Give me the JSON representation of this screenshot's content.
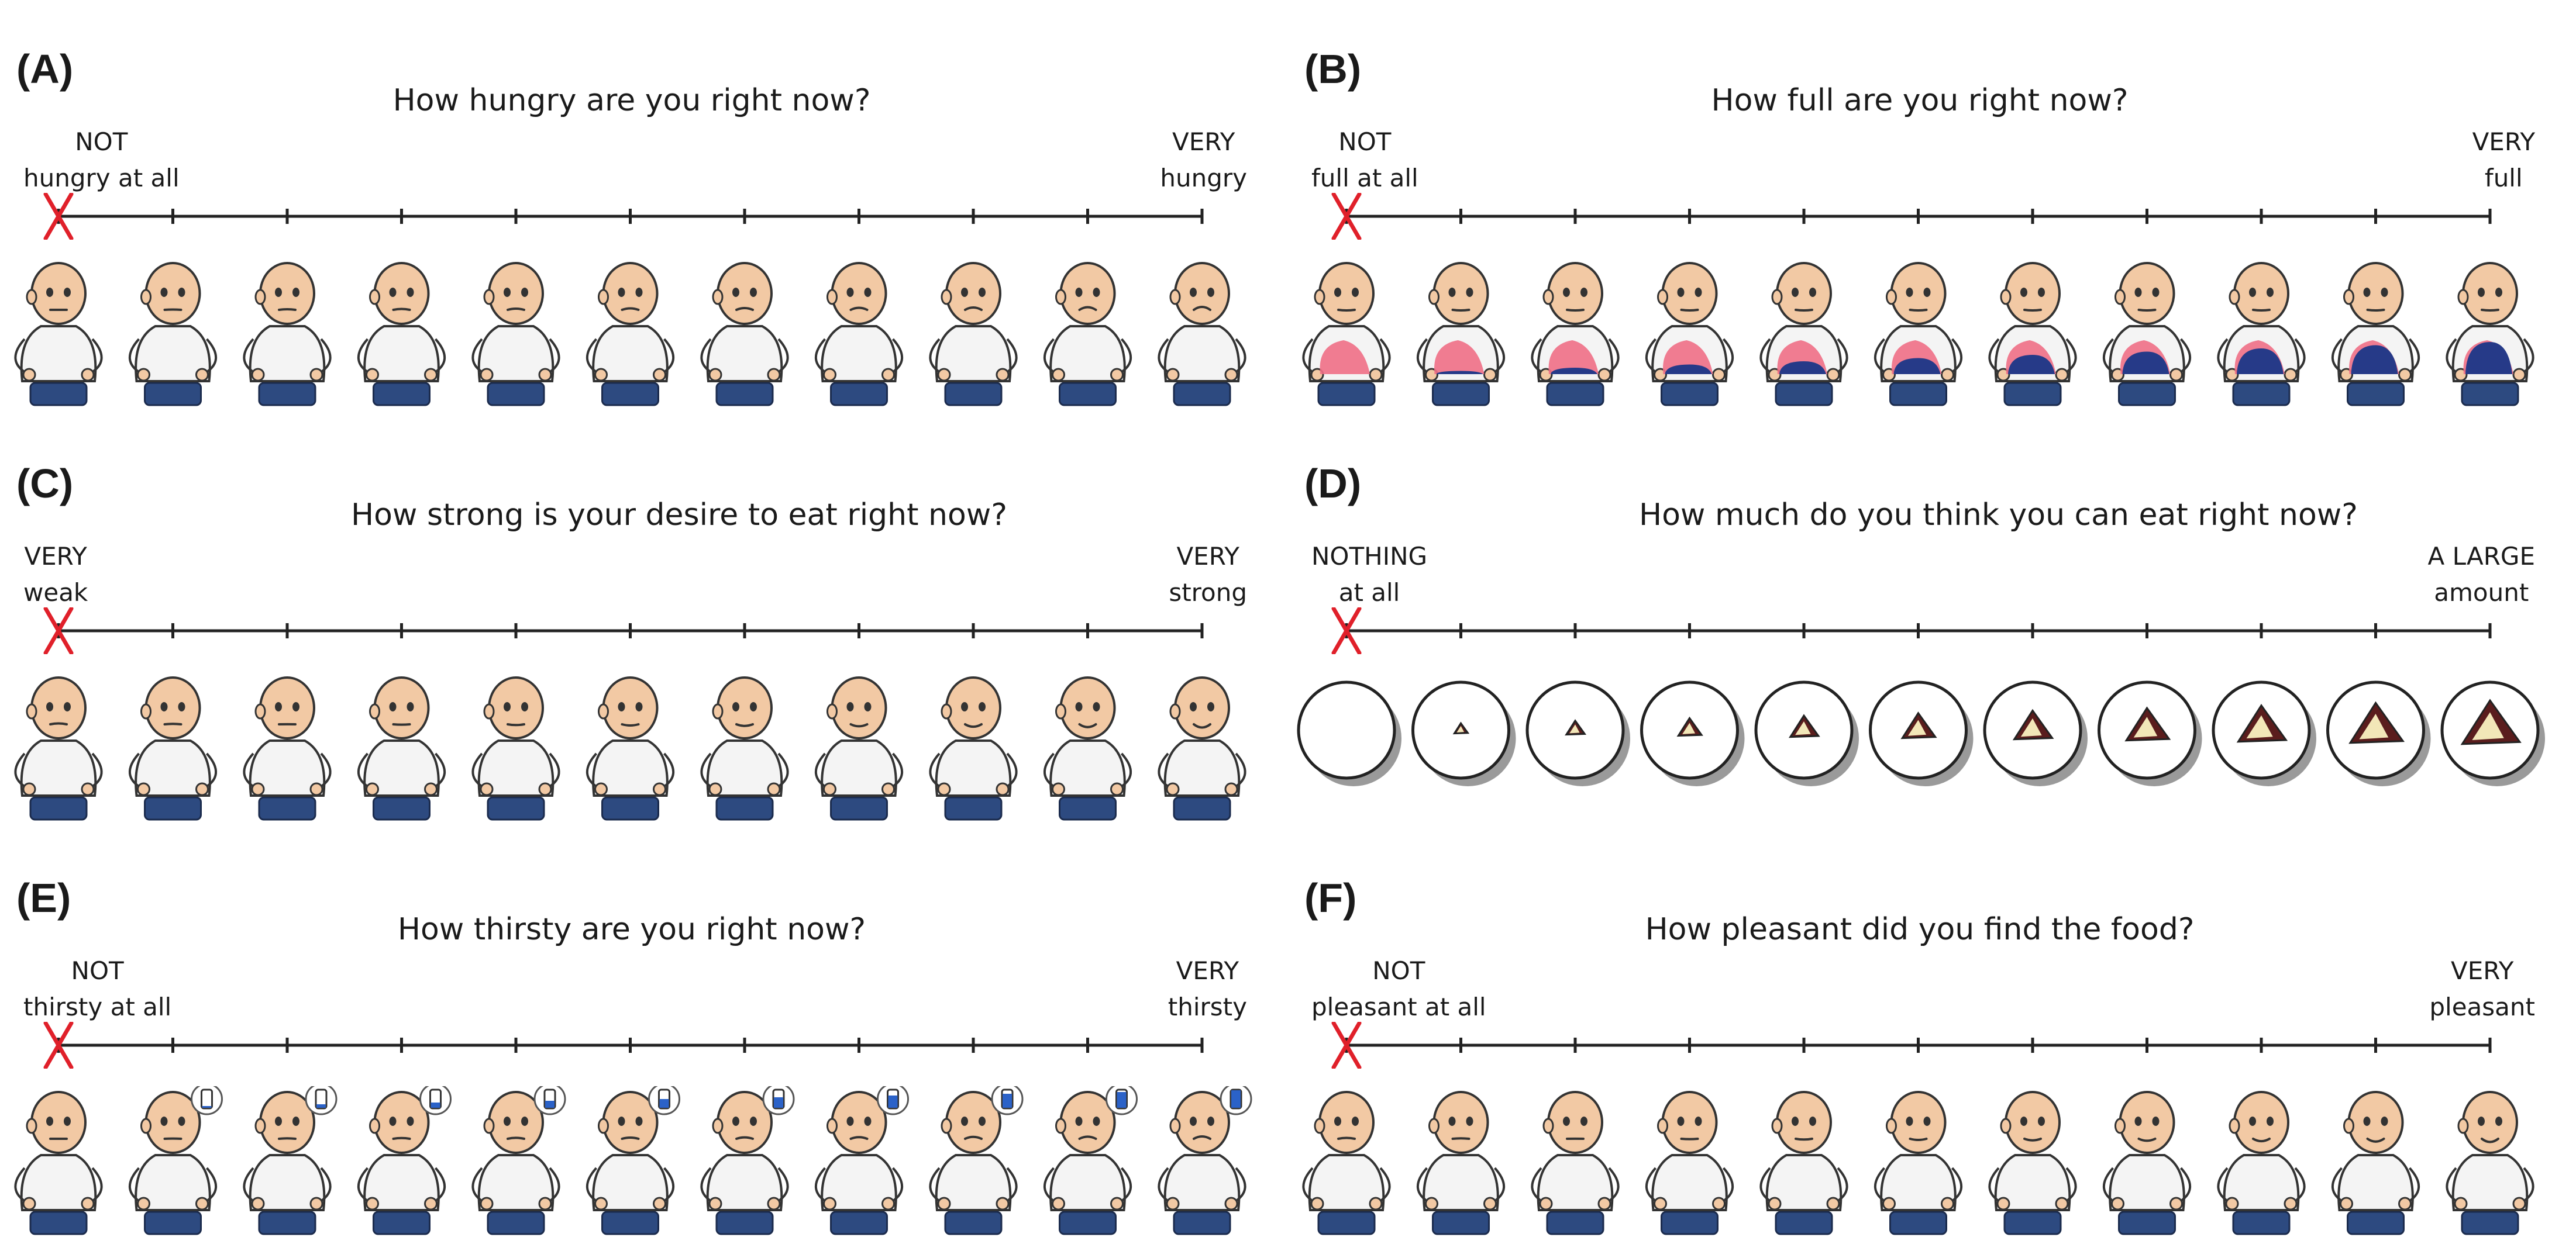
{
  "colors": {
    "line": "#222222",
    "marker": "#e0202a",
    "skin": "#f2c9a4",
    "shirt": "#f4f4f4",
    "jeans": "#2d4a80",
    "stomach_empty": "#ef6f86",
    "stomach_full": "#263a88",
    "water": "#2b62c8",
    "food": "#5a1d1d",
    "plate_shadow": "#9a9a9a"
  },
  "marker_position": 0,
  "scale_points": 11,
  "panels": [
    {
      "id": "A",
      "label": "(A)",
      "question": "How hungry are you right now?",
      "left_anchor": [
        "NOT",
        "hungry at all"
      ],
      "right_anchor": [
        "VERY",
        "hungry"
      ],
      "icon_set": "person-hunger-icon"
    },
    {
      "id": "B",
      "label": "(B)",
      "question": "How full are you right now?",
      "left_anchor": [
        "NOT",
        "full at all"
      ],
      "right_anchor": [
        "VERY",
        "full"
      ],
      "icon_set": "person-stomach-fullness-icon"
    },
    {
      "id": "C",
      "label": "(C)",
      "question": "How strong is your desire to eat right now?",
      "left_anchor": [
        "VERY",
        "weak"
      ],
      "right_anchor": [
        "VERY",
        "strong"
      ],
      "icon_set": "person-desire-icon"
    },
    {
      "id": "D",
      "label": "(D)",
      "question": "How much do you think you can eat right now?",
      "left_anchor": [
        "NOTHING",
        "at all"
      ],
      "right_anchor": [
        "A LARGE",
        "amount"
      ],
      "icon_set": "food-plate-icon"
    },
    {
      "id": "E",
      "label": "(E)",
      "question": "How thirsty are you right now?",
      "left_anchor": [
        "NOT",
        "thirsty at all"
      ],
      "right_anchor": [
        "VERY",
        "thirsty"
      ],
      "icon_set": "person-thirst-bottle-icon"
    },
    {
      "id": "F",
      "label": "(F)",
      "question": "How pleasant did you find the food?",
      "left_anchor": [
        "NOT",
        "pleasant at all"
      ],
      "right_anchor": [
        "VERY",
        "pleasant"
      ],
      "icon_set": "person-pleasantness-icon"
    }
  ]
}
